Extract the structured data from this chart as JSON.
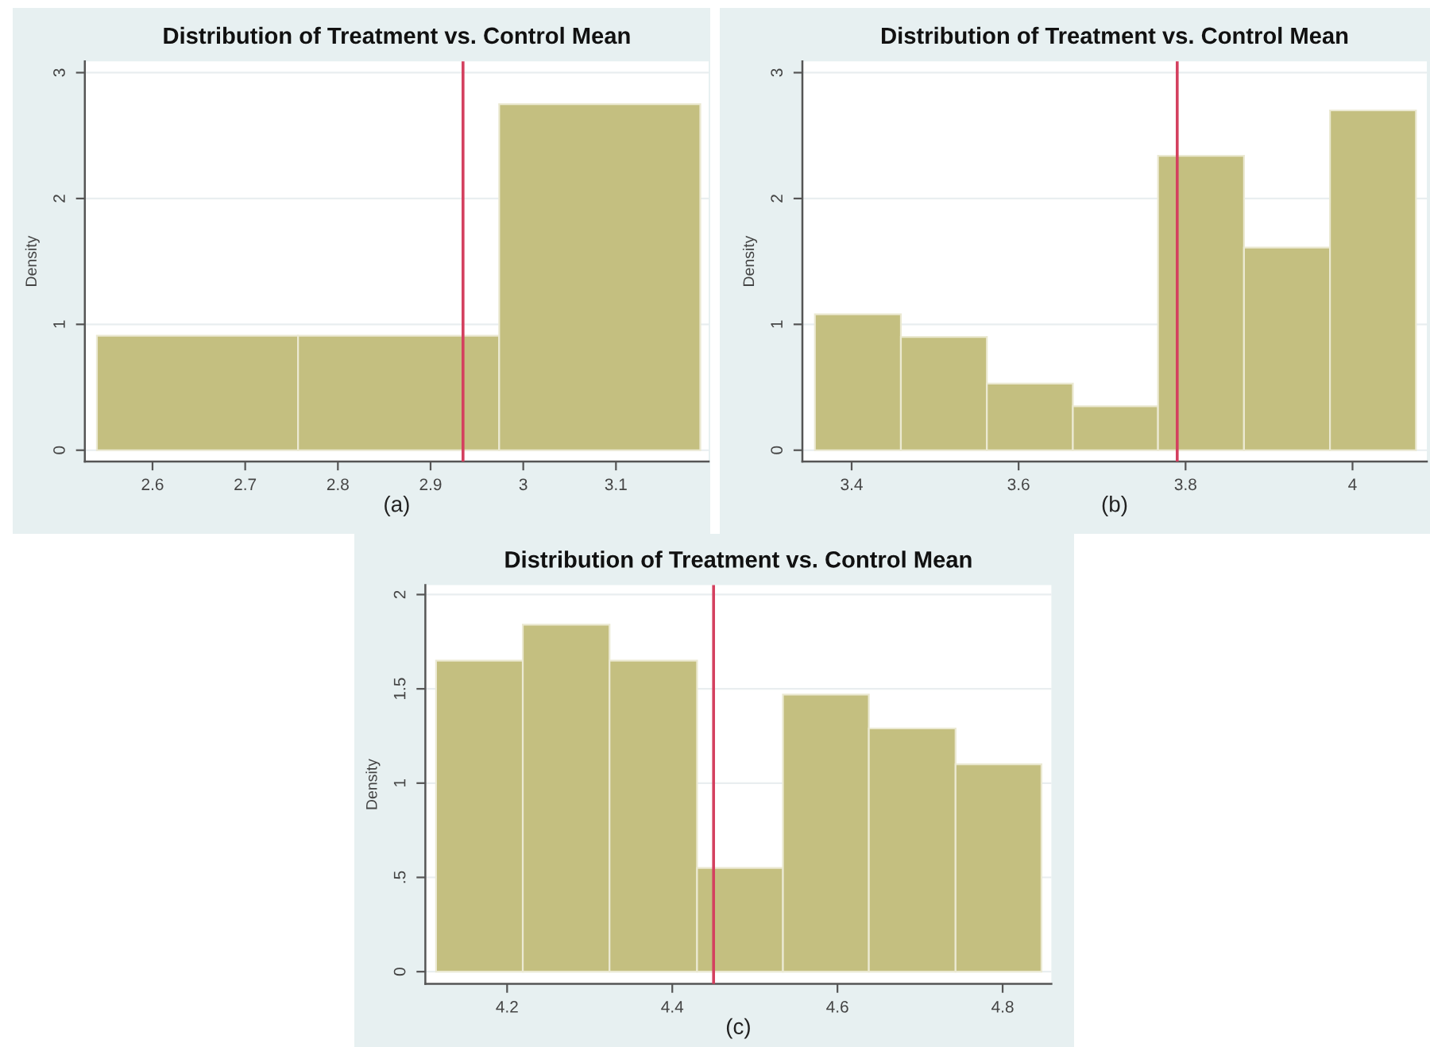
{
  "chart_data": [
    {
      "type": "histogram",
      "title": "Distribution of Treatment vs. Control Mean",
      "xlabel": "(a)",
      "ylabel": "Density",
      "bins": [
        2.54,
        2.757,
        2.974,
        3.191
      ],
      "values": [
        0.91,
        0.91,
        2.75
      ],
      "color": "#c4bf80",
      "xlim": [
        2.527,
        3.2
      ],
      "ylim": [
        -0.09,
        3.09
      ],
      "xticks": [
        2.6,
        2.7,
        2.8,
        2.9,
        3,
        3.1
      ],
      "yticks": [
        0,
        1,
        2,
        3
      ],
      "grid": "y",
      "ref_lines": [
        {
          "axis": "x",
          "value": 2.935,
          "color": "#d4405f"
        }
      ]
    },
    {
      "type": "histogram",
      "title": "Distribution of Treatment vs. Control Mean",
      "xlabel": "(b)",
      "ylabel": "Density",
      "bins": [
        3.356,
        3.459,
        3.562,
        3.665,
        3.767,
        3.87,
        3.973,
        4.076
      ],
      "values": [
        1.08,
        0.9,
        0.53,
        0.35,
        2.34,
        1.61,
        2.7
      ],
      "color": "#c4bf80",
      "xlim": [
        3.341,
        4.089
      ],
      "ylim": [
        -0.09,
        3.09
      ],
      "xticks": [
        3.4,
        3.6,
        3.8,
        4
      ],
      "yticks": [
        0,
        1,
        2,
        3
      ],
      "grid": "y",
      "ref_lines": [
        {
          "axis": "x",
          "value": 3.79,
          "color": "#d4405f"
        }
      ]
    },
    {
      "type": "histogram",
      "title": "Distribution of Treatment vs. Control Mean",
      "xlabel": "(c)",
      "ylabel": "Density",
      "bins": [
        4.114,
        4.219,
        4.324,
        4.43,
        4.534,
        4.638,
        4.743,
        4.847
      ],
      "values": [
        1.65,
        1.84,
        1.65,
        0.55,
        1.47,
        1.29,
        1.1
      ],
      "color": "#c4bf80",
      "xlim": [
        4.101,
        4.859
      ],
      "ylim": [
        -0.065,
        2.05
      ],
      "xticks": [
        4.2,
        4.4,
        4.6,
        4.8
      ],
      "yticks": [
        0,
        {
          "value": 0.5,
          "label": ".5"
        },
        1,
        1.5,
        2
      ],
      "grid": "y",
      "ref_lines": [
        {
          "axis": "x",
          "value": 4.45,
          "color": "#d4405f"
        }
      ]
    }
  ]
}
